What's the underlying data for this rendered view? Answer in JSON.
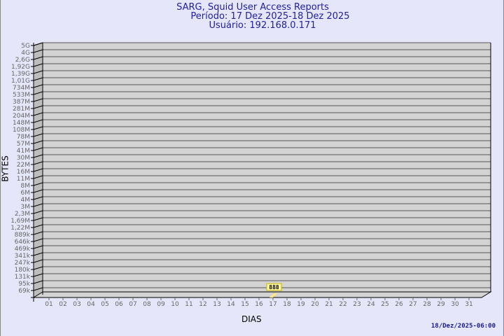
{
  "chart_data": {
    "type": "bar",
    "title": "SARG, Squid User Access Reports",
    "subtitle": [
      "Período: 17 Dez 2025-18 Dez 2025",
      "Usuário: 192.168.0.171"
    ],
    "xlabel": "DIAS",
    "ylabel": "BYTES",
    "categories": [
      "01",
      "02",
      "03",
      "04",
      "05",
      "06",
      "07",
      "08",
      "09",
      "10",
      "11",
      "12",
      "13",
      "14",
      "15",
      "16",
      "17",
      "18",
      "19",
      "20",
      "21",
      "22",
      "23",
      "24",
      "25",
      "26",
      "27",
      "28",
      "29",
      "30",
      "31"
    ],
    "values": [
      {
        "day": "17",
        "value": 888,
        "label": "888"
      }
    ],
    "y_tick_labels": [
      "5G",
      "4G",
      "2,6G",
      "1,92G",
      "1,39G",
      "1,01G",
      "734M",
      "533M",
      "387M",
      "281M",
      "204M",
      "148M",
      "108M",
      "78M",
      "57M",
      "41M",
      "30M",
      "22M",
      "16M",
      "11M",
      "8M",
      "6M",
      "4M",
      "3M",
      "2,3M",
      "1,69M",
      "1,22M",
      "889k",
      "646k",
      "469k",
      "341k",
      "247k",
      "180k",
      "131k",
      "95k",
      "69k"
    ],
    "y_scale": "log",
    "grid": true,
    "colors": {
      "background": "#e6e6fa",
      "plot": "#d3d3d3",
      "bar": "#ffe680",
      "title": "#2020a0"
    }
  },
  "footer": {
    "timestamp": "18/Dez/2025-06:00"
  }
}
